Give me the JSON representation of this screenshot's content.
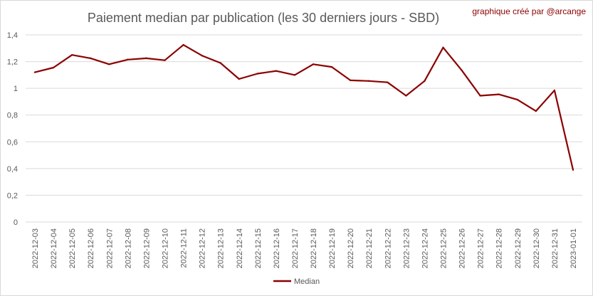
{
  "chart_data": {
    "type": "line",
    "title": "Paiement median par publication (les 30 derniers jours - SBD)",
    "credit": "graphique créé par @arcange",
    "xlabel": "",
    "ylabel": "",
    "ylim": [
      0,
      1.4
    ],
    "yticks": [
      "0",
      "0,2",
      "0,4",
      "0,6",
      "0,8",
      "1",
      "1,2",
      "1,4"
    ],
    "grid": true,
    "legend_position": "bottom",
    "categories": [
      "2022-12-03",
      "2022-12-04",
      "2022-12-05",
      "2022-12-06",
      "2022-12-07",
      "2022-12-08",
      "2022-12-09",
      "2022-12-10",
      "2022-12-11",
      "2022-12-12",
      "2022-12-13",
      "2022-12-14",
      "2022-12-15",
      "2022-12-16",
      "2022-12-17",
      "2022-12-18",
      "2022-12-19",
      "2022-12-20",
      "2022-12-21",
      "2022-12-22",
      "2022-12-23",
      "2022-12-24",
      "2022-12-25",
      "2022-12-26",
      "2022-12-27",
      "2022-12-28",
      "2022-12-29",
      "2022-12-30",
      "2022-12-31",
      "2023-01-01"
    ],
    "series": [
      {
        "name": "Median",
        "color": "#8b0000",
        "values": [
          1.12,
          1.155,
          1.25,
          1.225,
          1.18,
          1.215,
          1.225,
          1.21,
          1.325,
          1.245,
          1.19,
          1.07,
          1.11,
          1.13,
          1.1,
          1.18,
          1.16,
          1.06,
          1.055,
          1.045,
          0.945,
          1.055,
          1.305,
          1.135,
          0.945,
          0.955,
          0.915,
          0.83,
          0.985,
          0.39
        ]
      }
    ]
  },
  "colors": {
    "series": "#8b0000",
    "grid": "#d9d9d9",
    "text": "#595959"
  }
}
